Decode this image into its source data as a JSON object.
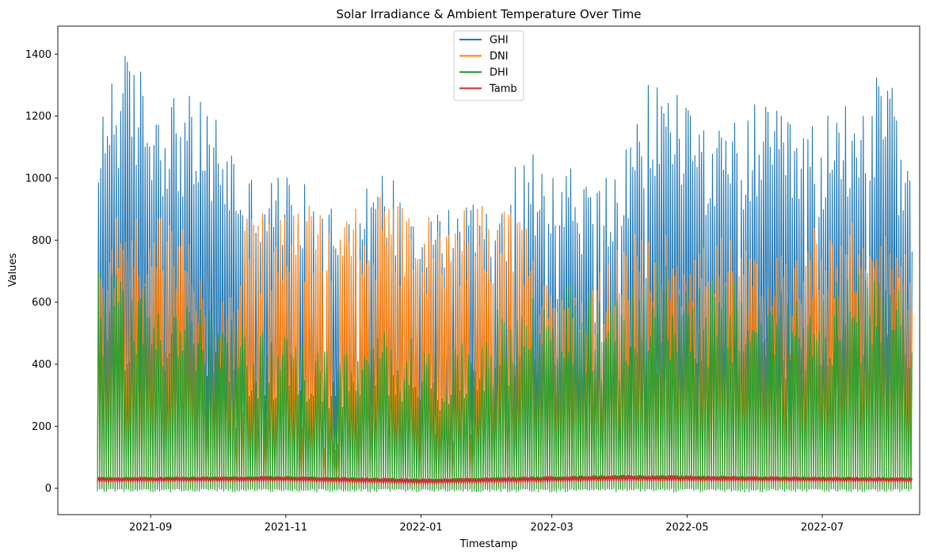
{
  "chart_data": {
    "type": "line",
    "title": "Solar Irradiance & Ambient Temperature Over Time",
    "xlabel": "Timestamp",
    "ylabel": "Values",
    "x_range": [
      "2021-08-08",
      "2022-08-10"
    ],
    "ylim": [
      -85,
      1490
    ],
    "x_ticks": [
      "2021-09",
      "2021-11",
      "2022-01",
      "2022-03",
      "2022-05",
      "2022-07"
    ],
    "y_ticks": [
      0,
      200,
      400,
      600,
      800,
      1000,
      1200,
      1400
    ],
    "grid": false,
    "legend": "top-center",
    "series": [
      {
        "name": "GHI",
        "color": "#1f77b4",
        "daily_peak": [
          {
            "date": "2021-08-08",
            "value": 1000
          },
          {
            "date": "2021-08-10",
            "value": 1350
          },
          {
            "date": "2021-08-18",
            "value": 1415
          },
          {
            "date": "2021-08-25",
            "value": 1395
          },
          {
            "date": "2021-09-01",
            "value": 1320
          },
          {
            "date": "2021-09-15",
            "value": 1280
          },
          {
            "date": "2021-10-01",
            "value": 1220
          },
          {
            "date": "2021-10-15",
            "value": 1020
          },
          {
            "date": "2021-11-01",
            "value": 1020
          },
          {
            "date": "2021-11-15",
            "value": 950
          },
          {
            "date": "2021-12-01",
            "value": 930
          },
          {
            "date": "2021-12-15",
            "value": 1040
          },
          {
            "date": "2022-01-01",
            "value": 940
          },
          {
            "date": "2022-01-15",
            "value": 920
          },
          {
            "date": "2022-02-01",
            "value": 970
          },
          {
            "date": "2022-02-15",
            "value": 1060
          },
          {
            "date": "2022-03-01",
            "value": 1140
          },
          {
            "date": "2022-03-15",
            "value": 1010
          },
          {
            "date": "2022-04-01",
            "value": 1050
          },
          {
            "date": "2022-04-15",
            "value": 1350
          },
          {
            "date": "2022-05-01",
            "value": 1300
          },
          {
            "date": "2022-05-15",
            "value": 1160
          },
          {
            "date": "2022-06-01",
            "value": 1250
          },
          {
            "date": "2022-06-15",
            "value": 1200
          },
          {
            "date": "2022-07-01",
            "value": 1190
          },
          {
            "date": "2022-07-15",
            "value": 1330
          },
          {
            "date": "2022-08-01",
            "value": 1330
          },
          {
            "date": "2022-08-10",
            "value": 950
          }
        ]
      },
      {
        "name": "DNI",
        "color": "#ff7f0e",
        "daily_peak": [
          {
            "date": "2021-08-08",
            "value": 820
          },
          {
            "date": "2021-08-15",
            "value": 900
          },
          {
            "date": "2021-09-01",
            "value": 880
          },
          {
            "date": "2021-09-15",
            "value": 880
          },
          {
            "date": "2021-10-01",
            "value": 600
          },
          {
            "date": "2021-10-15",
            "value": 890
          },
          {
            "date": "2021-11-01",
            "value": 880
          },
          {
            "date": "2021-11-15",
            "value": 930
          },
          {
            "date": "2021-12-01",
            "value": 930
          },
          {
            "date": "2021-12-15",
            "value": 940
          },
          {
            "date": "2022-01-01",
            "value": 880
          },
          {
            "date": "2022-01-15",
            "value": 920
          },
          {
            "date": "2022-02-01",
            "value": 940
          },
          {
            "date": "2022-02-15",
            "value": 860
          },
          {
            "date": "2022-03-01",
            "value": 720
          },
          {
            "date": "2022-03-15",
            "value": 600
          },
          {
            "date": "2022-04-01",
            "value": 830
          },
          {
            "date": "2022-04-15",
            "value": 830
          },
          {
            "date": "2022-05-01",
            "value": 820
          },
          {
            "date": "2022-05-15",
            "value": 830
          },
          {
            "date": "2022-06-01",
            "value": 750
          },
          {
            "date": "2022-06-15",
            "value": 760
          },
          {
            "date": "2022-07-01",
            "value": 880
          },
          {
            "date": "2022-07-15",
            "value": 860
          },
          {
            "date": "2022-08-01",
            "value": 820
          },
          {
            "date": "2022-08-10",
            "value": 800
          }
        ],
        "daily_low": [
          {
            "date": "2021-08-08",
            "value": 600
          },
          {
            "date": "2021-09-01",
            "value": 400
          },
          {
            "date": "2021-10-01",
            "value": 220
          },
          {
            "date": "2021-11-01",
            "value": 180
          },
          {
            "date": "2021-11-25",
            "value": 125
          },
          {
            "date": "2021-12-15",
            "value": 300
          },
          {
            "date": "2022-01-01",
            "value": 150
          },
          {
            "date": "2022-01-20",
            "value": 150
          },
          {
            "date": "2022-02-15",
            "value": 400
          },
          {
            "date": "2022-03-15",
            "value": 500
          },
          {
            "date": "2022-04-15",
            "value": 380
          },
          {
            "date": "2022-05-15",
            "value": 420
          },
          {
            "date": "2022-06-15",
            "value": 400
          },
          {
            "date": "2022-07-15",
            "value": 500
          },
          {
            "date": "2022-08-10",
            "value": 450
          }
        ]
      },
      {
        "name": "DHI",
        "color": "#2ca02c",
        "daily_peak": [
          {
            "date": "2021-08-08",
            "value": 700
          },
          {
            "date": "2021-09-01",
            "value": 670
          },
          {
            "date": "2021-09-15",
            "value": 640
          },
          {
            "date": "2021-10-01",
            "value": 560
          },
          {
            "date": "2021-10-15",
            "value": 520
          },
          {
            "date": "2021-11-01",
            "value": 500
          },
          {
            "date": "2021-11-15",
            "value": 460
          },
          {
            "date": "2021-12-01",
            "value": 440
          },
          {
            "date": "2021-12-15",
            "value": 520
          },
          {
            "date": "2022-01-01",
            "value": 470
          },
          {
            "date": "2022-01-15",
            "value": 440
          },
          {
            "date": "2022-02-01",
            "value": 570
          },
          {
            "date": "2022-02-15",
            "value": 620
          },
          {
            "date": "2022-03-01",
            "value": 680
          },
          {
            "date": "2022-03-15",
            "value": 650
          },
          {
            "date": "2022-04-01",
            "value": 600
          },
          {
            "date": "2022-04-15",
            "value": 750
          },
          {
            "date": "2022-05-01",
            "value": 700
          },
          {
            "date": "2022-05-15",
            "value": 680
          },
          {
            "date": "2022-06-01",
            "value": 660
          },
          {
            "date": "2022-06-15",
            "value": 630
          },
          {
            "date": "2022-07-01",
            "value": 680
          },
          {
            "date": "2022-07-15",
            "value": 700
          },
          {
            "date": "2022-08-10",
            "value": 650
          }
        ],
        "night_min": -12
      },
      {
        "name": "Tamb",
        "color": "#d62728",
        "daily_peak": [
          {
            "date": "2021-08-08",
            "value": 35
          },
          {
            "date": "2021-11-01",
            "value": 38
          },
          {
            "date": "2022-01-01",
            "value": 30
          },
          {
            "date": "2022-04-01",
            "value": 42
          },
          {
            "date": "2022-06-01",
            "value": 38
          },
          {
            "date": "2022-08-10",
            "value": 34
          }
        ],
        "daily_low": [
          {
            "date": "2021-08-08",
            "value": 20
          },
          {
            "date": "2021-11-01",
            "value": 22
          },
          {
            "date": "2022-01-01",
            "value": 14
          },
          {
            "date": "2022-04-01",
            "value": 24
          },
          {
            "date": "2022-06-01",
            "value": 22
          },
          {
            "date": "2022-08-10",
            "value": 20
          }
        ]
      }
    ]
  }
}
